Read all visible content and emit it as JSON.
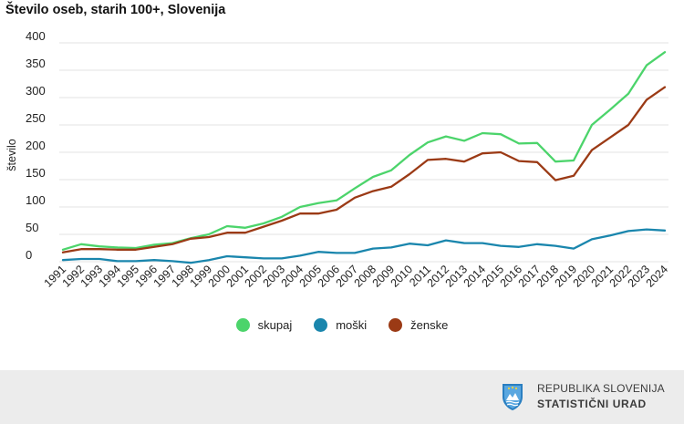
{
  "colors": {
    "skupaj": "#4cd46b",
    "moski": "#1a86ad",
    "zenske": "#9b3a15",
    "grid": "#e3e3e3",
    "footer": "#ececec"
  },
  "legend": {
    "skupaj": "skupaj",
    "moski": "moški",
    "zenske": "ženske"
  },
  "footer": {
    "line1": "REPUBLIKA SLOVENIJA",
    "line2": "STATISTIČNI URAD"
  },
  "chart_data": {
    "type": "line",
    "title": "Število oseb, starih 100+, Slovenija",
    "xlabel": "",
    "ylabel": "število",
    "ylim": [
      0,
      400
    ],
    "yticks": [
      0,
      50,
      100,
      150,
      200,
      250,
      300,
      350,
      400
    ],
    "grid": true,
    "legend_position": "bottom",
    "categories": [
      "1991",
      "1992",
      "1993",
      "1994",
      "1995",
      "1996",
      "1997",
      "1998",
      "1999",
      "2000",
      "2001",
      "2002",
      "2003",
      "2004",
      "2005",
      "2006",
      "2007",
      "2008",
      "2009",
      "2010",
      "2011",
      "2012",
      "2013",
      "2014",
      "2015",
      "2016",
      "2017",
      "2018",
      "2019",
      "2020",
      "2021",
      "2022",
      "2023",
      "2024"
    ],
    "series": [
      {
        "key": "skupaj",
        "name": "skupaj",
        "values": [
          22,
          32,
          28,
          26,
          25,
          31,
          34,
          43,
          50,
          65,
          62,
          70,
          82,
          100,
          107,
          112,
          134,
          155,
          167,
          195,
          218,
          229,
          221,
          235,
          233,
          216,
          217,
          183,
          185,
          250,
          278,
          307,
          359,
          383
        ]
      },
      {
        "key": "moski",
        "name": "moški",
        "values": [
          3,
          5,
          5,
          1,
          1,
          3,
          1,
          -2,
          3,
          10,
          8,
          6,
          6,
          11,
          18,
          16,
          16,
          24,
          26,
          33,
          30,
          39,
          34,
          34,
          29,
          27,
          32,
          29,
          24,
          41,
          48,
          56,
          59,
          57
        ]
      },
      {
        "key": "zenske",
        "name": "ženske",
        "values": [
          17,
          23,
          23,
          22,
          22,
          27,
          32,
          42,
          45,
          53,
          53,
          64,
          75,
          88,
          88,
          95,
          117,
          129,
          137,
          160,
          186,
          188,
          183,
          198,
          200,
          184,
          182,
          149,
          157,
          204,
          227,
          250,
          296,
          319
        ]
      }
    ]
  }
}
